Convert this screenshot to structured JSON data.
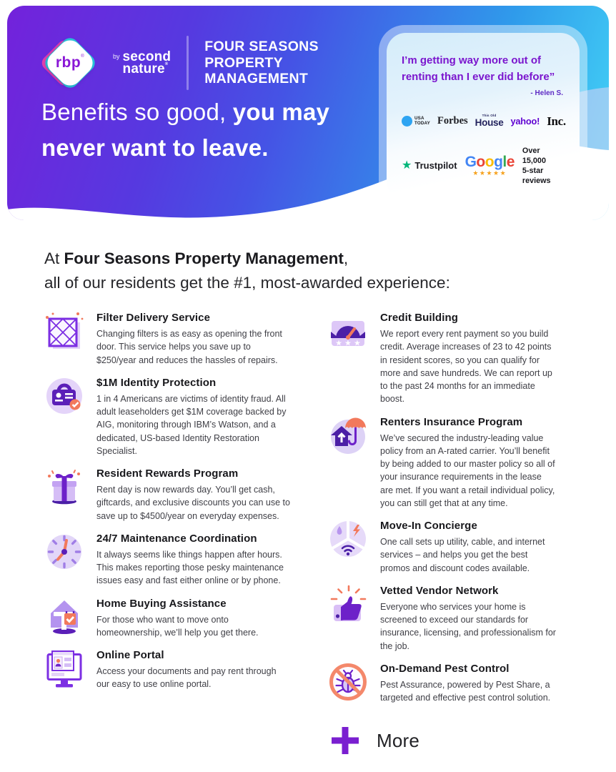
{
  "brand": {
    "rbp": "rbp",
    "rbp_mark": "®",
    "by": "by",
    "name_line1": "second",
    "name_line2": "nature",
    "name_mark": "®"
  },
  "header": {
    "company_lines": [
      "FOUR SEASONS",
      "PROPERTY",
      "MANAGEMENT"
    ],
    "headline": {
      "light": "Benefits so good, ",
      "bold_inline": "you may",
      "bold_line2": "never want to leave."
    }
  },
  "testimonial": {
    "quote_line1": "I’m getting way more out of",
    "quote_line2": "renting than I ever did before”",
    "attribution": "- Helen S.",
    "press": {
      "usa_today_line1": "USA",
      "usa_today_line2": "TODAY",
      "forbes": "Forbes",
      "house_small": "This Old",
      "house_big": "House",
      "yahoo": "yahoo!",
      "inc": "Inc."
    },
    "reviews": {
      "trustpilot_star": "★",
      "trustpilot": "Trustpilot",
      "google_letters": [
        "G",
        "o",
        "o",
        "g",
        "l",
        "e"
      ],
      "google_stars": "★★★★★",
      "line1": "Over 15,000",
      "line2": "5-star reviews"
    }
  },
  "intro": {
    "prefix": "At ",
    "bold": "Four Seasons Property Management",
    "suffix": ",",
    "line2": "all of our residents get the #1, most-awarded experience:"
  },
  "benefits": {
    "left": [
      {
        "icon": "filter",
        "title": "Filter Delivery Service",
        "description": "Changing filters is as easy as opening the front door. This service helps you save up to $250/year and reduces the hassles of repairs."
      },
      {
        "icon": "identity",
        "title": "$1M Identity Protection",
        "description": "1 in 4 Americans are victims of identity fraud. All adult leaseholders get $1M coverage backed by AIG, monitoring through IBM’s Watson, and a dedicated, US-based Identity Restoration Specialist."
      },
      {
        "icon": "rewards",
        "title": "Resident Rewards Program",
        "description": "Rent day is now rewards day. You’ll get cash, giftcards, and exclusive discounts you can use to save up to $4500/year on everyday expenses."
      },
      {
        "icon": "maintenance",
        "title": "24/7 Maintenance Coordination",
        "description": "It always seems like things happen after hours. This makes reporting those pesky maintenance issues easy and fast either online or by phone."
      },
      {
        "icon": "home-buying",
        "title": "Home Buying Assistance",
        "description": "For those who want to move onto homeownership, we’ll help you get there."
      },
      {
        "icon": "online-portal",
        "title": "Online Portal",
        "description": "Access your documents and pay rent through our easy to use online portal."
      }
    ],
    "right": [
      {
        "icon": "credit",
        "title": "Credit Building",
        "description": "We report every rent payment so you build credit. Average increases of 23 to 42 points in resident scores, so you can qualify for more and save hundreds. We can report up to the past 24 months for an immediate boost."
      },
      {
        "icon": "insurance",
        "title": "Renters Insurance Program",
        "description": "We’ve secured the industry-leading value policy from an A-rated carrier. You’ll benefit by being added to our master policy so all of your insurance requirements in the lease are met. If you want a retail individual policy, you can still get that at any time."
      },
      {
        "icon": "concierge",
        "title": "Move-In Concierge",
        "description": "One call sets up utility, cable, and internet services – and helps you get the best promos and discount codes available."
      },
      {
        "icon": "vendor",
        "title": "Vetted Vendor Network",
        "description": "Everyone who services your home is screened to exceed our standards for insurance, licensing, and professionalism for the job."
      },
      {
        "icon": "pest",
        "title": "On-Demand Pest Control",
        "description": "Pest Assurance, powered by Pest Share, a targeted and effective pest control solution."
      }
    ],
    "more_label": "More"
  },
  "colors": {
    "accent_purple": "#7a1fd0",
    "coral": "#f2795c",
    "header_gradient": [
      "#7322db",
      "#4a4ae3",
      "#2f9beb",
      "#45d7f7"
    ],
    "trustpilot_green": "#00b67a",
    "usa_today_blue": "#2ea4f2",
    "yahoo_purple": "#5f01d1",
    "google_star_gold": "#f6a11c"
  }
}
